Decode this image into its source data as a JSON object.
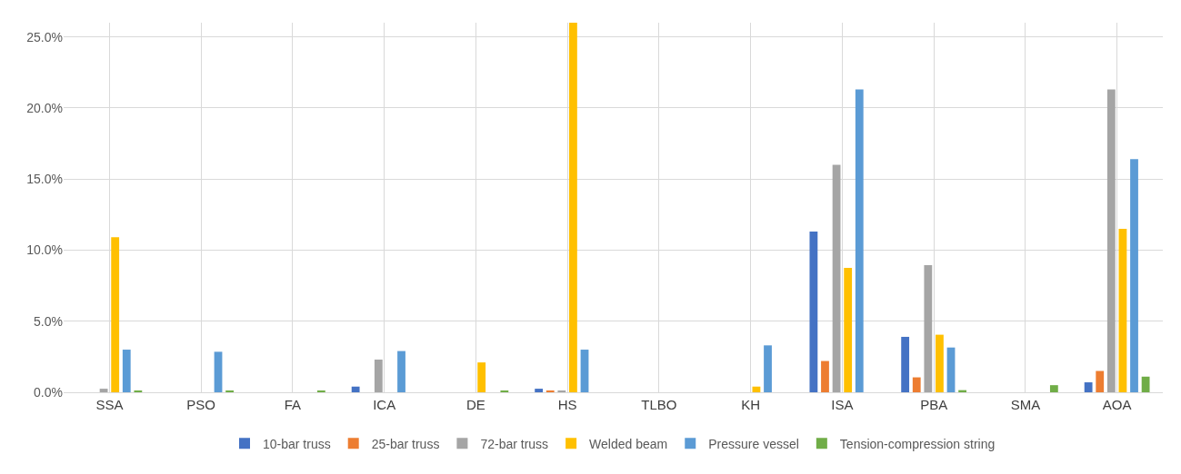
{
  "chart_data": {
    "type": "bar",
    "categories": [
      "SSA",
      "PSO",
      "FA",
      "ICA",
      "DE",
      "HS",
      "TLBO",
      "KH",
      "ISA",
      "PBA",
      "SMA",
      "AOA"
    ],
    "series": [
      {
        "name": "10-bar truss",
        "color": "#4472c4",
        "values": [
          0,
          0,
          0,
          0.4,
          0,
          0.25,
          0,
          0,
          11.3,
          3.9,
          0,
          0.7
        ]
      },
      {
        "name": "25-bar truss",
        "color": "#ed7d31",
        "values": [
          0,
          0,
          0,
          0,
          0,
          0.1,
          0,
          0,
          2.2,
          1.05,
          0,
          1.5
        ]
      },
      {
        "name": "72-bar truss",
        "color": "#a5a5a5",
        "values": [
          0.25,
          0,
          0,
          2.3,
          0,
          0.1,
          0,
          0,
          16.0,
          8.95,
          0,
          21.3
        ]
      },
      {
        "name": "Welded beam",
        "color": "#ffc000",
        "values": [
          10.9,
          0,
          0,
          0,
          2.1,
          26.0,
          0,
          0.4,
          8.75,
          4.05,
          0,
          11.5
        ]
      },
      {
        "name": "Pressure vessel",
        "color": "#5b9bd5",
        "values": [
          3.0,
          2.85,
          0,
          2.9,
          0,
          3.0,
          0,
          3.3,
          21.3,
          3.15,
          0,
          16.4
        ]
      },
      {
        "name": "Tension-compression string",
        "color": "#70ad47",
        "values": [
          0.1,
          0.1,
          0.1,
          0,
          0.1,
          0,
          0,
          0,
          0,
          0.15,
          0.5,
          1.1
        ]
      }
    ],
    "ylim": [
      0,
      26
    ],
    "yticks": [
      {
        "value": 0,
        "label": "0.0%"
      },
      {
        "value": 5,
        "label": "5.0%"
      },
      {
        "value": 10,
        "label": "10.0%"
      },
      {
        "value": 15,
        "label": "15.0%"
      },
      {
        "value": 20,
        "label": "20.0%"
      },
      {
        "value": 25,
        "label": "25.0%"
      }
    ],
    "grid": true,
    "legend": "bottom"
  }
}
